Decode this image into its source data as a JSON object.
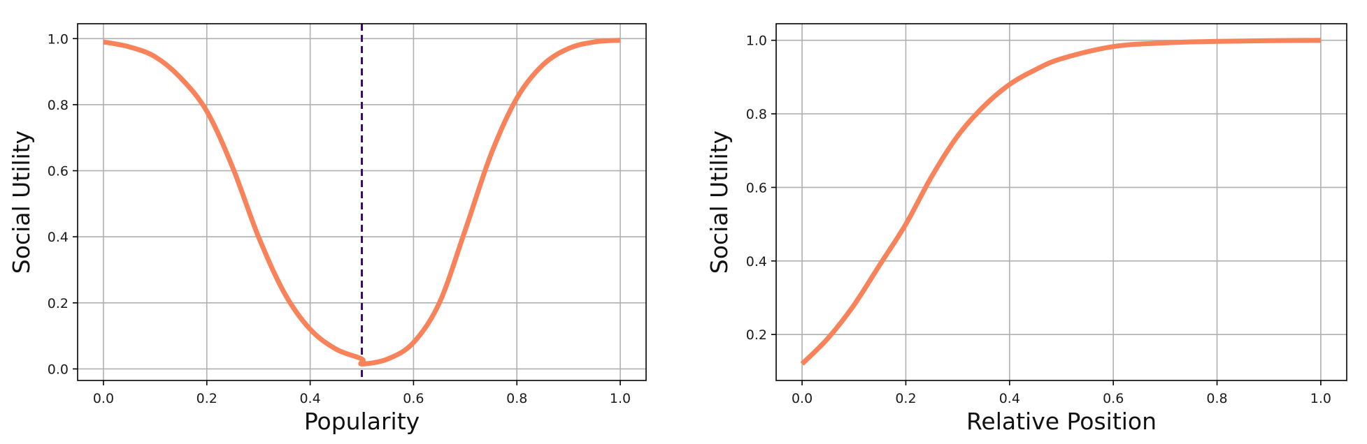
{
  "chart_data": [
    {
      "type": "line",
      "xlabel": "Popularity",
      "ylabel": "Social Utility",
      "xlim": [
        -0.05,
        1.05
      ],
      "ylim": [
        -0.035,
        1.045
      ],
      "xticks": [
        0.0,
        0.2,
        0.4,
        0.6,
        0.8,
        1.0
      ],
      "yticks": [
        0.0,
        0.2,
        0.4,
        0.6,
        0.8,
        1.0
      ],
      "xtick_labels": [
        "0.0",
        "0.2",
        "0.4",
        "0.6",
        "0.8",
        "1.0"
      ],
      "ytick_labels": [
        "0.0",
        "0.2",
        "0.4",
        "0.6",
        "0.8",
        "1.0"
      ],
      "grid": true,
      "series": [
        {
          "color": "#f8825a",
          "x": [
            0.0,
            0.05,
            0.1,
            0.15,
            0.2,
            0.25,
            0.3,
            0.35,
            0.4,
            0.45,
            0.5,
            0.5001,
            0.55,
            0.6,
            0.65,
            0.7,
            0.75,
            0.8,
            0.85,
            0.9,
            0.95,
            1.0
          ],
          "y": [
            0.99,
            0.975,
            0.945,
            0.88,
            0.78,
            0.61,
            0.4,
            0.23,
            0.12,
            0.06,
            0.03,
            0.015,
            0.03,
            0.08,
            0.2,
            0.42,
            0.65,
            0.82,
            0.92,
            0.97,
            0.99,
            0.995
          ]
        }
      ],
      "vline": {
        "x": 0.5,
        "color": "#3d0a6e",
        "style": "dashed"
      }
    },
    {
      "type": "line",
      "xlabel": "Relative Position",
      "ylabel": "Social Utility",
      "xlim": [
        -0.05,
        1.05
      ],
      "ylim": [
        0.075,
        1.045
      ],
      "xticks": [
        0.0,
        0.2,
        0.4,
        0.6,
        0.8,
        1.0
      ],
      "yticks": [
        0.2,
        0.4,
        0.6,
        0.8,
        1.0
      ],
      "xtick_labels": [
        "0.0",
        "0.2",
        "0.4",
        "0.6",
        "0.8",
        "1.0"
      ],
      "ytick_labels": [
        "0.2",
        "0.4",
        "0.6",
        "0.8",
        "1.0"
      ],
      "grid": true,
      "series": [
        {
          "color": "#f8825a",
          "x": [
            0.0,
            0.05,
            0.1,
            0.15,
            0.2,
            0.25,
            0.3,
            0.35,
            0.4,
            0.45,
            0.5,
            0.6,
            0.7,
            0.8,
            0.9,
            1.0
          ],
          "y": [
            0.12,
            0.19,
            0.28,
            0.39,
            0.5,
            0.63,
            0.74,
            0.82,
            0.88,
            0.92,
            0.95,
            0.983,
            0.993,
            0.997,
            0.999,
            1.0
          ]
        }
      ]
    }
  ]
}
